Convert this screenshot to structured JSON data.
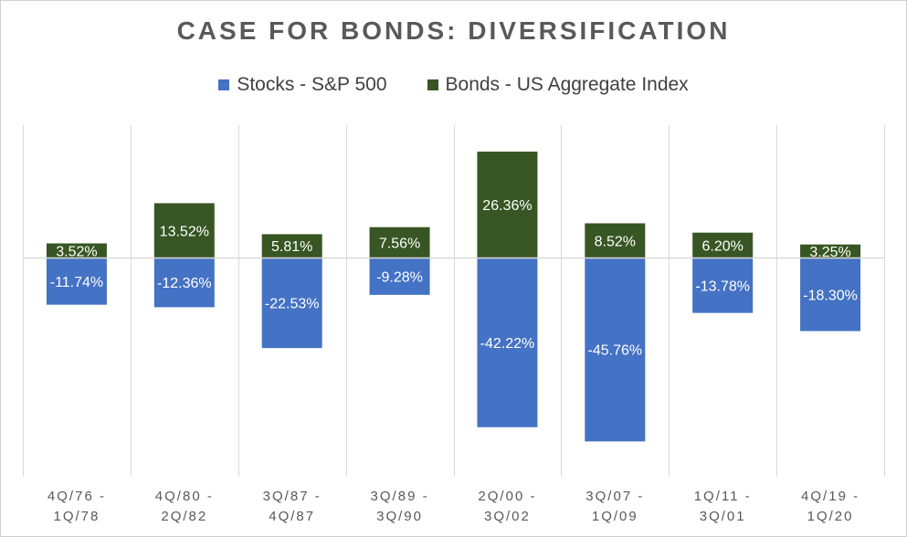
{
  "chart_data": {
    "type": "bar",
    "title": "CASE FOR BONDS: DIVERSIFICATION",
    "categories": [
      [
        "4Q/76 -",
        "1Q/78"
      ],
      [
        "4Q/80 -",
        "2Q/82"
      ],
      [
        "3Q/87 -",
        "4Q/87"
      ],
      [
        "3Q/89 -",
        "3Q/90"
      ],
      [
        "2Q/00 -",
        "3Q/02"
      ],
      [
        "3Q/07 -",
        "1Q/09"
      ],
      [
        "1Q/11 -",
        "3Q/01"
      ],
      [
        "4Q/19 -",
        "1Q/20"
      ]
    ],
    "series": [
      {
        "name": "Stocks - S&P 500",
        "color": "#4472C4",
        "values": [
          -11.74,
          -12.36,
          -22.53,
          -9.28,
          -42.22,
          -45.76,
          -13.78,
          -18.3
        ],
        "labels": [
          "-11.74%",
          "-12.36%",
          "-22.53%",
          "-9.28%",
          "-42.22%",
          "-45.76%",
          "-13.78%",
          "-18.30%"
        ]
      },
      {
        "name": "Bonds - US Aggregate Index",
        "color": "#375623",
        "values": [
          3.52,
          13.52,
          5.81,
          7.56,
          26.36,
          8.52,
          6.2,
          3.25
        ],
        "labels": [
          "3.52%",
          "13.52%",
          "5.81%",
          "7.56%",
          "26.36%",
          "8.52%",
          "6.20%",
          "3.25%"
        ]
      }
    ],
    "stacked": true,
    "ylim": [
      -50,
      30
    ],
    "grid": "vertical category separators",
    "legend_position": "top-center",
    "zero_line": true
  }
}
